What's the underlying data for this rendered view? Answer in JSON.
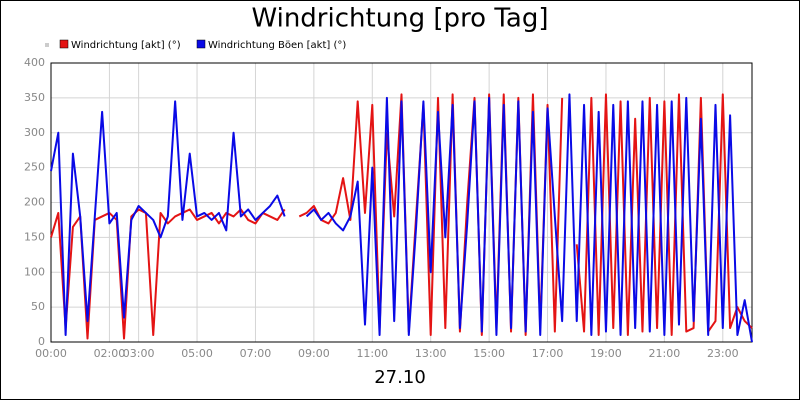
{
  "chart_data": {
    "type": "line",
    "title": "Windrichtung [pro Tag]",
    "xlabel": "27.10",
    "x": [
      0,
      0.25,
      0.5,
      0.75,
      1,
      1.25,
      1.5,
      1.75,
      2,
      2.25,
      2.5,
      2.75,
      3,
      3.25,
      3.5,
      3.75,
      4,
      4.25,
      4.5,
      4.75,
      5,
      5.25,
      5.5,
      5.75,
      6,
      6.25,
      6.5,
      6.75,
      7,
      7.25,
      7.5,
      7.75,
      8,
      8.25,
      8.5,
      8.75,
      9,
      9.25,
      9.5,
      9.75,
      10,
      10.25,
      10.5,
      10.75,
      11,
      11.25,
      11.5,
      11.75,
      12,
      12.25,
      12.5,
      12.75,
      13,
      13.25,
      13.5,
      13.75,
      14,
      14.25,
      14.5,
      14.75,
      15,
      15.25,
      15.5,
      15.75,
      16,
      16.25,
      16.5,
      16.75,
      17,
      17.25,
      17.5,
      17.75,
      18,
      18.25,
      18.5,
      18.75,
      19,
      19.25,
      19.5,
      19.75,
      20,
      20.25,
      20.5,
      20.75,
      21,
      21.25,
      21.5,
      21.75,
      22,
      22.25,
      22.5,
      22.75,
      23,
      23.25,
      23.5,
      23.75,
      24
    ],
    "series": [
      {
        "name": "Windrichtung [akt] (°)",
        "color": "#e41414",
        "values": [
          150,
          185,
          20,
          165,
          180,
          5,
          175,
          180,
          185,
          175,
          5,
          180,
          190,
          185,
          10,
          185,
          170,
          180,
          185,
          190,
          175,
          180,
          185,
          170,
          185,
          180,
          190,
          175,
          170,
          185,
          180,
          175,
          190,
          null,
          180,
          185,
          195,
          175,
          170,
          185,
          235,
          175,
          345,
          185,
          340,
          20,
          300,
          180,
          355,
          15,
          180,
          340,
          10,
          350,
          20,
          355,
          15,
          200,
          350,
          10,
          355,
          20,
          355,
          15,
          350,
          10,
          355,
          20,
          340,
          15,
          350,
          null,
          140,
          15,
          350,
          10,
          355,
          20,
          345,
          10,
          320,
          15,
          350,
          20,
          345,
          10,
          355,
          15,
          20,
          350,
          15,
          30,
          355,
          20,
          50,
          30,
          20
        ]
      },
      {
        "name": "Windrichtung Böen [akt] (°)",
        "color": "#0a0ae6",
        "values": [
          245,
          300,
          10,
          270,
          180,
          30,
          180,
          330,
          170,
          185,
          35,
          175,
          195,
          185,
          175,
          150,
          180,
          345,
          175,
          270,
          180,
          185,
          175,
          185,
          160,
          300,
          180,
          190,
          175,
          185,
          195,
          210,
          180,
          null,
          null,
          180,
          190,
          175,
          185,
          170,
          160,
          180,
          230,
          25,
          250,
          10,
          350,
          30,
          345,
          10,
          165,
          345,
          100,
          330,
          150,
          340,
          20,
          170,
          345,
          15,
          350,
          10,
          340,
          20,
          345,
          15,
          330,
          10,
          335,
          180,
          30,
          355,
          30,
          340,
          10,
          330,
          15,
          340,
          10,
          345,
          20,
          345,
          15,
          340,
          10,
          345,
          25,
          350,
          30,
          320,
          10,
          340,
          20,
          325,
          10,
          60,
          0
        ]
      }
    ],
    "xlim": [
      0,
      24
    ],
    "xticks": [
      {
        "value": 0,
        "label": "00:00"
      },
      {
        "value": 2,
        "label": "02:00"
      },
      {
        "value": 3,
        "label": "03:00"
      },
      {
        "value": 5,
        "label": "05:00"
      },
      {
        "value": 7,
        "label": "07:00"
      },
      {
        "value": 9,
        "label": "09:00"
      },
      {
        "value": 11,
        "label": "11:00"
      },
      {
        "value": 13,
        "label": "13:00"
      },
      {
        "value": 15,
        "label": "15:00"
      },
      {
        "value": 17,
        "label": "17:00"
      },
      {
        "value": 19,
        "label": "19:00"
      },
      {
        "value": 21,
        "label": "21:00"
      },
      {
        "value": 23,
        "label": "23:00"
      }
    ],
    "ylim": [
      0,
      400
    ],
    "yticks": [
      0,
      50,
      100,
      150,
      200,
      250,
      300,
      350,
      400
    ],
    "grid": true
  }
}
